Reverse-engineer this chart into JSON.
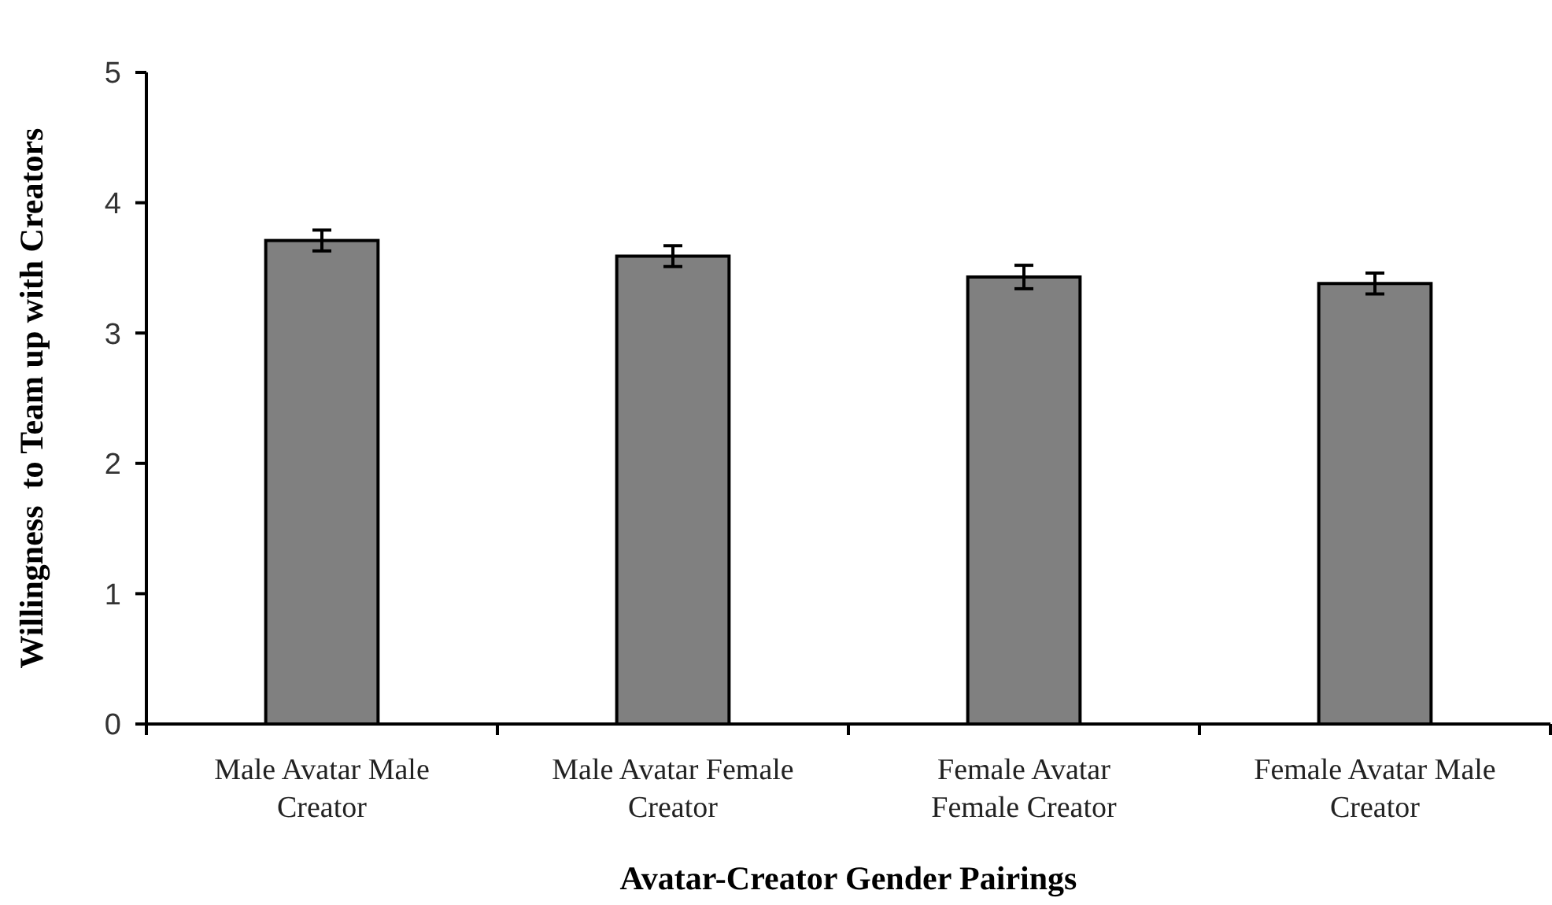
{
  "chart_data": {
    "type": "bar",
    "xlabel": "Avatar-Creator Gender Pairings",
    "ylabel": "Willingness  to Team up with Creators",
    "categories": [
      "Male Avatar Male Creator",
      "Male Avatar Female Creator",
      "Female Avatar Female Creator",
      "Female Avatar Male Creator"
    ],
    "values": [
      3.71,
      3.59,
      3.43,
      3.38
    ],
    "errors": [
      0.08,
      0.08,
      0.09,
      0.08
    ],
    "color": "#808080",
    "ylim": [
      0,
      5
    ],
    "yticks": [
      0,
      1,
      2,
      3,
      4,
      5
    ],
    "grid": false
  }
}
